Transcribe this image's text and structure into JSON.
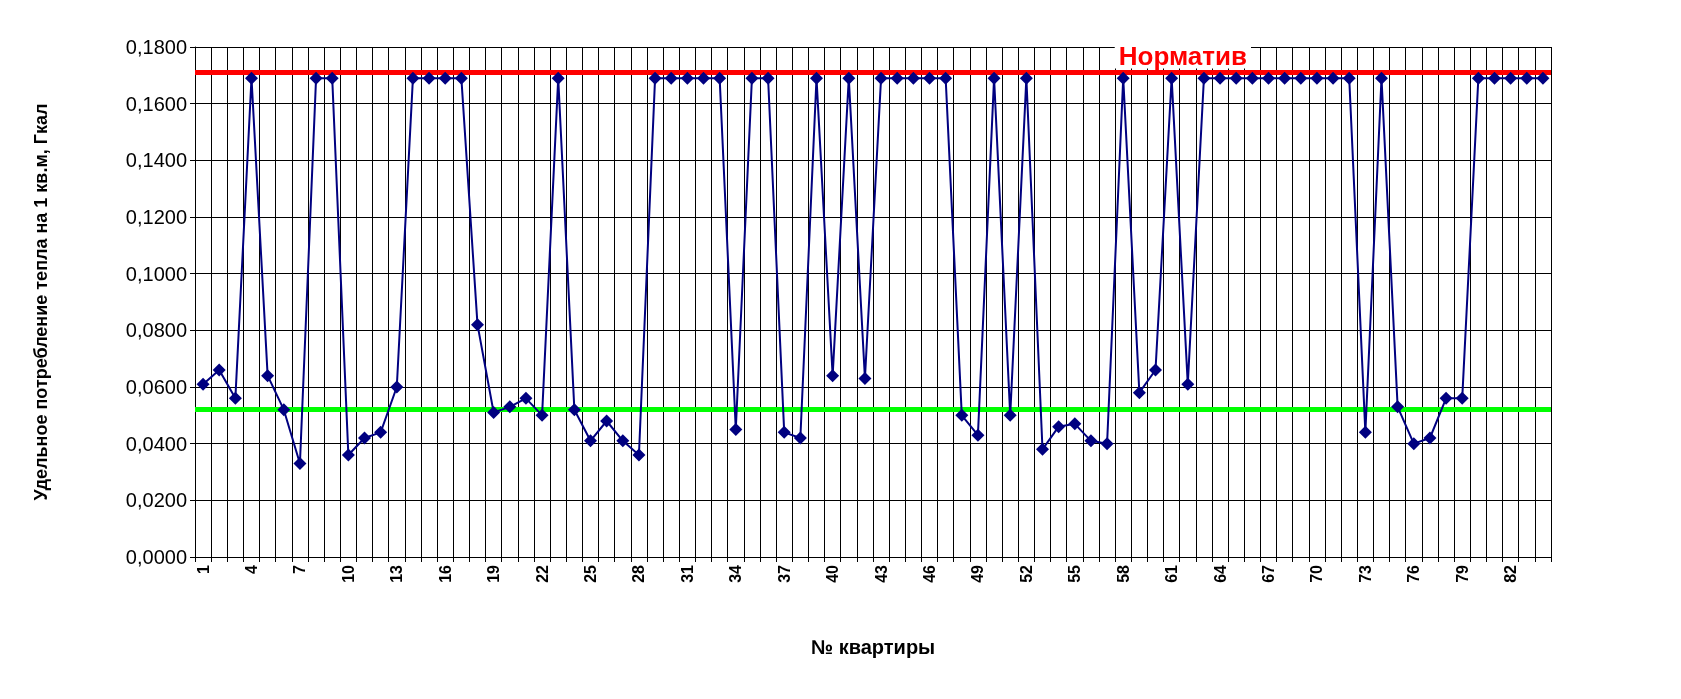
{
  "chart_data": {
    "type": "line",
    "xlabel": "№ квартиры",
    "ylabel": "Удельное потребление тепла на 1 кв.м, Гкал",
    "categories": [
      "1",
      null,
      null,
      "4",
      null,
      null,
      "7",
      null,
      null,
      "10",
      null,
      null,
      "13",
      null,
      null,
      "16",
      null,
      null,
      "19",
      null,
      null,
      "22",
      null,
      null,
      "25",
      null,
      null,
      "28",
      null,
      null,
      "31",
      null,
      null,
      "34",
      null,
      null,
      "37",
      null,
      null,
      "40",
      null,
      null,
      "43",
      null,
      null,
      "46",
      null,
      null,
      "49",
      null,
      null,
      "52",
      null,
      null,
      "55",
      null,
      null,
      "58",
      null,
      null,
      "61",
      null,
      null,
      "64",
      null,
      null,
      "67",
      null,
      null,
      "70",
      null,
      null,
      "73",
      null,
      null,
      "76",
      null,
      null,
      "79",
      null,
      null,
      "82",
      null,
      null
    ],
    "series": [
      {
        "color": "#000080",
        "values": [
          0.061,
          0.066,
          0.056,
          0.169,
          0.064,
          0.052,
          0.033,
          0.169,
          0.169,
          0.036,
          0.042,
          0.044,
          0.06,
          0.169,
          0.169,
          0.169,
          0.169,
          0.082,
          0.051,
          0.053,
          0.056,
          0.05,
          0.169,
          0.052,
          0.041,
          0.048,
          0.041,
          0.036,
          0.169,
          0.169,
          0.169,
          0.169,
          0.169,
          0.045,
          0.169,
          0.169,
          0.044,
          0.042,
          0.169,
          0.064,
          0.169,
          0.063,
          0.169,
          0.169,
          0.169,
          0.169,
          0.169,
          0.05,
          0.043,
          0.169,
          0.05,
          0.169,
          0.038,
          0.046,
          0.047,
          0.041,
          0.04,
          0.169,
          0.058,
          0.066,
          0.169,
          0.061,
          0.169,
          0.169,
          0.169,
          0.169,
          0.169,
          0.169,
          0.169,
          0.169,
          0.169,
          0.169,
          0.044,
          0.169,
          0.053,
          0.04,
          0.042,
          0.056,
          0.056,
          0.169,
          0.169,
          0.169,
          0.169,
          0.169
        ]
      }
    ],
    "ylim": [
      0,
      0.18
    ],
    "yticks": [
      {
        "value": 0,
        "label": "0,0000"
      },
      {
        "value": 0.02,
        "label": "0,0200"
      },
      {
        "value": 0.04,
        "label": "0,0400"
      },
      {
        "value": 0.06,
        "label": "0,0600"
      },
      {
        "value": 0.08,
        "label": "0,0800"
      },
      {
        "value": 0.1,
        "label": "0,1000"
      },
      {
        "value": 0.12,
        "label": "0,1200"
      },
      {
        "value": 0.14,
        "label": "0,1400"
      },
      {
        "value": 0.16,
        "label": "0,1600"
      },
      {
        "value": 0.18,
        "label": "0,1800"
      }
    ],
    "ref_lines": [
      {
        "axis": "y",
        "value": 0.171,
        "label": "Норматив",
        "color": "#ff0000"
      },
      {
        "axis": "y",
        "value": 0.052,
        "color": "#00ff00"
      }
    ],
    "grid": true,
    "marker": "diamond",
    "line_style": "solid"
  }
}
